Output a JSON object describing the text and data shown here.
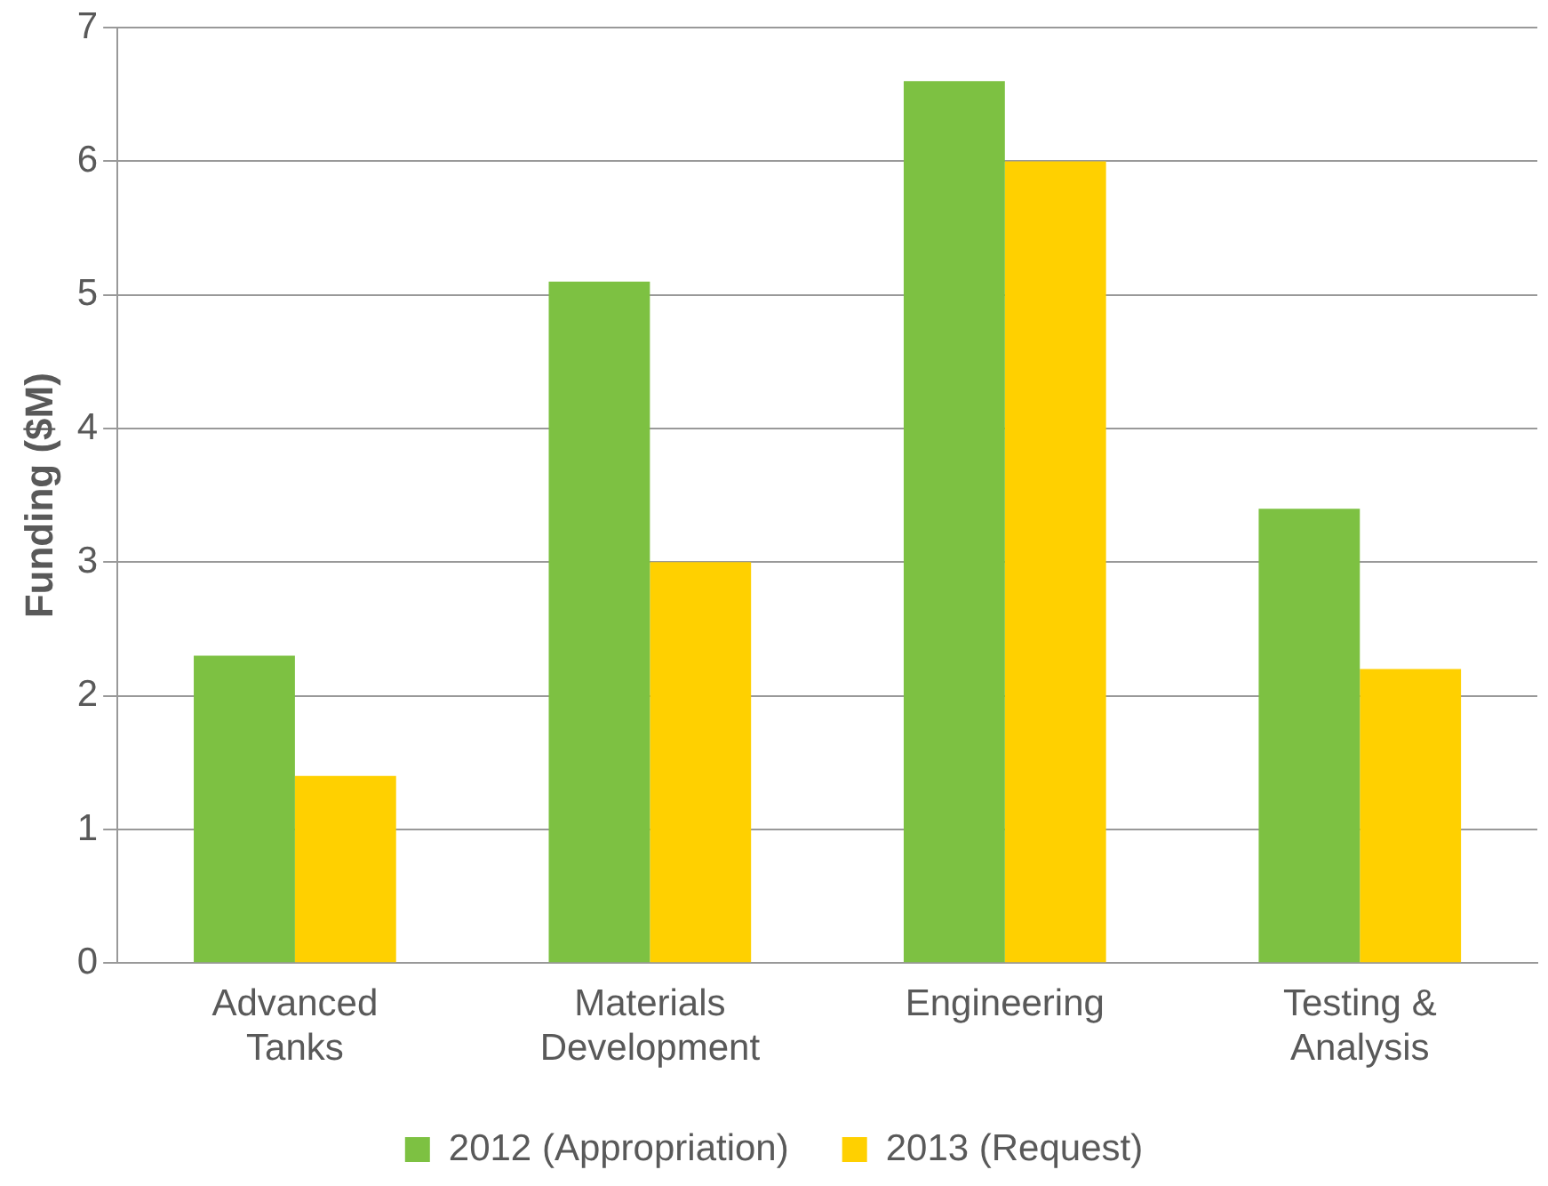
{
  "chart_data": {
    "type": "bar",
    "ylabel": "Funding ($M)",
    "categories": [
      "Advanced Tanks",
      "Materials Development",
      "Engineering",
      "Testing & Analysis"
    ],
    "series": [
      {
        "name": "2012 (Appropriation)",
        "color": "#7dc142",
        "values": [
          2.3,
          5.1,
          6.6,
          3.4
        ]
      },
      {
        "name": "2013 (Request)",
        "color": "#ffd000",
        "values": [
          1.4,
          3.0,
          6.0,
          2.2
        ]
      }
    ],
    "ylim": [
      0,
      7
    ],
    "yticks": [
      0,
      1,
      2,
      3,
      4,
      5,
      6,
      7
    ],
    "grid": "y",
    "legend": "bottom"
  }
}
